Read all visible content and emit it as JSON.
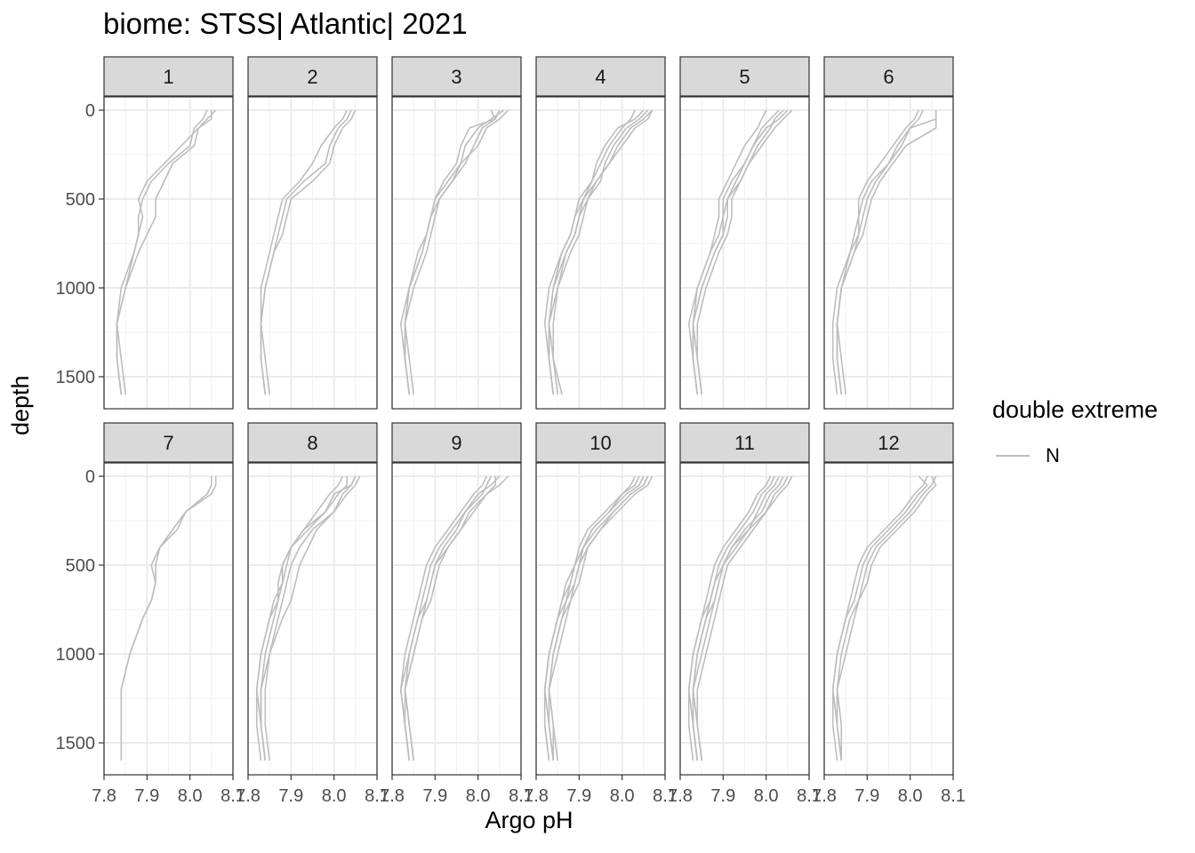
{
  "chart_data": {
    "type": "line",
    "title": "biome: STSS| Atlantic| 2021",
    "xlabel": "Argo pH",
    "ylabel": "depth",
    "xlim": [
      7.8,
      8.1
    ],
    "ylim": [
      0,
      1650
    ],
    "y_reversed": true,
    "x_ticks": [
      "7.8",
      "7.9",
      "8.0",
      "8.1"
    ],
    "y_ticks": [
      "0",
      "500",
      "1000",
      "1500"
    ],
    "grid": true,
    "legend": {
      "title": "double extreme",
      "placement": "right",
      "entries": [
        {
          "label": "N",
          "color": "#bdbdbd"
        }
      ]
    },
    "line_color": "#bdbdbd",
    "depths": [
      0,
      50,
      100,
      200,
      300,
      400,
      500,
      600,
      700,
      800,
      1000,
      1200,
      1400,
      1600
    ],
    "panels": [
      {
        "label": "1",
        "profiles": [
          [
            8.05,
            8.05,
            8.02,
            8.01,
            7.96,
            7.94,
            7.92,
            7.92,
            7.9,
            7.88,
            7.85,
            7.83,
            7.83,
            7.84
          ],
          [
            8.04,
            8.03,
            8.01,
            8.0,
            7.95,
            7.91,
            7.89,
            7.88,
            7.88,
            7.87,
            7.85,
            7.83,
            7.84,
            7.85
          ],
          [
            8.06,
            8.04,
            8.02,
            7.98,
            7.94,
            7.9,
            7.88,
            7.89,
            7.88,
            7.87,
            7.84,
            7.83,
            7.83,
            7.84
          ]
        ]
      },
      {
        "label": "2",
        "profiles": [
          [
            8.04,
            8.03,
            8.01,
            7.99,
            7.98,
            7.93,
            7.89,
            7.88,
            7.87,
            7.86,
            7.84,
            7.83,
            7.83,
            7.84
          ],
          [
            8.05,
            8.04,
            8.02,
            8.0,
            7.99,
            7.95,
            7.9,
            7.89,
            7.88,
            7.86,
            7.84,
            7.83,
            7.84,
            7.85
          ],
          [
            8.03,
            8.02,
            8.0,
            7.97,
            7.95,
            7.92,
            7.88,
            7.87,
            7.86,
            7.85,
            7.83,
            7.83,
            7.83,
            7.84
          ]
        ]
      },
      {
        "label": "3",
        "profiles": [
          [
            8.06,
            8.03,
            8.0,
            7.97,
            7.96,
            7.94,
            7.91,
            7.9,
            7.89,
            7.88,
            7.85,
            7.83,
            7.83,
            7.84
          ],
          [
            8.05,
            8.04,
            8.01,
            7.99,
            7.97,
            7.94,
            7.91,
            7.89,
            7.88,
            7.87,
            7.84,
            7.83,
            7.84,
            7.85
          ],
          [
            8.03,
            8.04,
            7.98,
            7.96,
            7.95,
            7.92,
            7.9,
            7.89,
            7.88,
            7.87,
            7.84,
            7.83,
            7.83,
            7.84
          ],
          [
            8.07,
            8.05,
            8.02,
            8.0,
            7.96,
            7.93,
            7.9,
            7.89,
            7.88,
            7.86,
            7.84,
            7.82,
            7.83,
            7.84
          ]
        ]
      },
      {
        "label": "4",
        "profiles": [
          [
            8.07,
            8.05,
            8.02,
            7.99,
            7.97,
            7.94,
            7.92,
            7.9,
            7.89,
            7.87,
            7.85,
            7.83,
            7.84,
            7.85
          ],
          [
            8.05,
            8.03,
            7.99,
            7.96,
            7.94,
            7.93,
            7.91,
            7.89,
            7.88,
            7.86,
            7.84,
            7.83,
            7.83,
            7.84
          ],
          [
            8.06,
            8.04,
            8.01,
            7.98,
            7.96,
            7.95,
            7.92,
            7.91,
            7.9,
            7.88,
            7.85,
            7.84,
            7.84,
            7.86
          ],
          [
            8.03,
            8.02,
            8.0,
            7.97,
            7.95,
            7.93,
            7.9,
            7.89,
            7.88,
            7.86,
            7.83,
            7.82,
            7.83,
            7.84
          ],
          [
            8.07,
            8.06,
            8.03,
            8.0,
            7.97,
            7.94,
            7.91,
            7.9,
            7.89,
            7.87,
            7.84,
            7.83,
            7.83,
            7.84
          ]
        ]
      },
      {
        "label": "5",
        "profiles": [
          [
            8.03,
            8.01,
            7.99,
            7.97,
            7.95,
            7.93,
            7.91,
            7.91,
            7.9,
            7.88,
            7.85,
            7.83,
            7.83,
            7.84
          ],
          [
            8.06,
            8.04,
            8.02,
            7.99,
            7.96,
            7.94,
            7.92,
            7.92,
            7.91,
            7.89,
            7.86,
            7.84,
            7.84,
            7.85
          ],
          [
            8.0,
            7.99,
            7.98,
            7.95,
            7.93,
            7.91,
            7.89,
            7.89,
            7.88,
            7.87,
            7.84,
            7.83,
            7.83,
            7.84
          ],
          [
            8.05,
            8.03,
            8.0,
            7.97,
            7.95,
            7.92,
            7.9,
            7.9,
            7.89,
            7.87,
            7.84,
            7.82,
            7.83,
            7.84
          ],
          [
            8.04,
            8.02,
            8.01,
            7.98,
            7.96,
            7.94,
            7.91,
            7.9,
            7.9,
            7.88,
            7.85,
            7.83,
            7.84,
            7.85
          ]
        ]
      },
      {
        "label": "6",
        "profiles": [
          [
            8.06,
            8.06,
            8.06,
            7.99,
            7.96,
            7.93,
            7.91,
            7.9,
            7.89,
            7.87,
            7.84,
            7.83,
            7.83,
            7.84
          ],
          [
            8.06,
            8.06,
            8.0,
            7.97,
            7.95,
            7.91,
            7.89,
            7.88,
            7.88,
            7.87,
            7.84,
            7.83,
            7.83,
            7.84
          ],
          [
            8.03,
            8.02,
            8.0,
            7.98,
            7.95,
            7.92,
            7.9,
            7.89,
            7.88,
            7.86,
            7.83,
            7.82,
            7.82,
            7.83
          ],
          [
            8.02,
            8.01,
            7.99,
            7.96,
            7.93,
            7.9,
            7.88,
            7.88,
            7.87,
            7.86,
            7.84,
            7.83,
            7.84,
            7.85
          ]
        ]
      },
      {
        "label": "7",
        "profiles": [
          [
            8.05,
            8.05,
            8.04,
            7.99,
            7.97,
            7.93,
            7.92,
            7.92,
            7.91,
            7.89,
            7.86,
            7.84,
            7.84,
            7.84
          ],
          [
            8.06,
            8.06,
            8.05,
            7.99,
            7.96,
            7.93,
            7.91,
            7.92,
            7.91,
            7.89,
            7.86,
            7.84,
            7.84,
            7.84
          ]
        ]
      },
      {
        "label": "8",
        "profiles": [
          [
            8.06,
            8.05,
            8.03,
            8.0,
            7.96,
            7.94,
            7.92,
            7.91,
            7.9,
            7.88,
            7.85,
            7.83,
            7.83,
            7.84
          ],
          [
            8.05,
            8.04,
            8.02,
            8.0,
            7.95,
            7.92,
            7.9,
            7.89,
            7.88,
            7.87,
            7.85,
            7.84,
            7.84,
            7.85
          ],
          [
            8.05,
            8.04,
            8.0,
            7.98,
            7.94,
            7.9,
            7.89,
            7.88,
            7.87,
            7.86,
            7.84,
            7.83,
            7.83,
            7.84
          ],
          [
            8.03,
            8.03,
            8.01,
            7.98,
            7.93,
            7.9,
            7.88,
            7.87,
            7.87,
            7.85,
            7.83,
            7.82,
            7.83,
            7.84
          ],
          [
            8.02,
            8.01,
            7.99,
            7.96,
            7.93,
            7.9,
            7.88,
            7.88,
            7.86,
            7.85,
            7.83,
            7.82,
            7.82,
            7.83
          ]
        ]
      },
      {
        "label": "9",
        "profiles": [
          [
            8.07,
            8.05,
            8.02,
            7.98,
            7.96,
            7.93,
            7.91,
            7.9,
            7.89,
            7.87,
            7.85,
            7.83,
            7.84,
            7.85
          ],
          [
            8.03,
            8.02,
            8.01,
            7.97,
            7.95,
            7.92,
            7.9,
            7.89,
            7.88,
            7.86,
            7.84,
            7.82,
            7.83,
            7.84
          ],
          [
            8.05,
            8.03,
            8.0,
            7.97,
            7.94,
            7.91,
            7.89,
            7.88,
            7.87,
            7.86,
            7.84,
            7.83,
            7.83,
            7.84
          ],
          [
            8.04,
            8.04,
            8.02,
            7.99,
            7.96,
            7.93,
            7.9,
            7.89,
            7.88,
            7.87,
            7.85,
            7.83,
            7.84,
            7.85
          ],
          [
            8.02,
            8.01,
            7.99,
            7.96,
            7.93,
            7.9,
            7.88,
            7.87,
            7.86,
            7.85,
            7.83,
            7.82,
            7.83,
            7.84
          ]
        ]
      },
      {
        "label": "10",
        "profiles": [
          [
            8.06,
            8.05,
            8.02,
            7.98,
            7.94,
            7.91,
            7.89,
            7.88,
            7.86,
            7.85,
            7.83,
            7.82,
            7.82,
            7.83
          ],
          [
            8.05,
            8.04,
            8.01,
            7.97,
            7.93,
            7.91,
            7.9,
            7.89,
            7.88,
            7.86,
            7.84,
            7.83,
            7.83,
            7.84
          ],
          [
            8.07,
            8.06,
            8.03,
            7.99,
            7.95,
            7.92,
            7.9,
            7.89,
            7.87,
            7.85,
            7.83,
            7.82,
            7.83,
            7.84
          ],
          [
            8.03,
            8.02,
            8.0,
            7.96,
            7.92,
            7.9,
            7.89,
            7.88,
            7.87,
            7.86,
            7.84,
            7.83,
            7.84,
            7.85
          ],
          [
            8.04,
            8.03,
            8.0,
            7.97,
            7.93,
            7.91,
            7.89,
            7.87,
            7.86,
            7.85,
            7.83,
            7.82,
            7.82,
            7.83
          ],
          [
            8.06,
            8.05,
            8.02,
            7.98,
            7.95,
            7.92,
            7.91,
            7.9,
            7.88,
            7.87,
            7.85,
            7.83,
            7.84,
            7.84
          ]
        ]
      },
      {
        "label": "11",
        "profiles": [
          [
            8.05,
            8.04,
            8.02,
            8.0,
            7.97,
            7.94,
            7.91,
            7.9,
            7.89,
            7.88,
            7.86,
            7.84,
            7.84,
            7.85
          ],
          [
            8.03,
            8.02,
            8.0,
            7.98,
            7.96,
            7.93,
            7.9,
            7.89,
            7.88,
            7.86,
            7.84,
            7.83,
            7.83,
            7.84
          ],
          [
            8.02,
            8.01,
            7.99,
            7.97,
            7.94,
            7.91,
            7.89,
            7.88,
            7.87,
            7.85,
            7.83,
            7.82,
            7.83,
            7.84
          ],
          [
            8.06,
            8.05,
            8.03,
            8.0,
            7.96,
            7.92,
            7.9,
            7.88,
            7.87,
            7.86,
            7.84,
            7.83,
            7.83,
            7.84
          ],
          [
            8.04,
            8.03,
            8.01,
            7.99,
            7.95,
            7.92,
            7.9,
            7.89,
            7.88,
            7.87,
            7.85,
            7.83,
            7.84,
            7.85
          ],
          [
            8.01,
            8.0,
            7.98,
            7.96,
            7.93,
            7.9,
            7.88,
            7.87,
            7.86,
            7.85,
            7.83,
            7.82,
            7.82,
            7.83
          ]
        ]
      },
      {
        "label": "12",
        "profiles": [
          [
            8.06,
            8.05,
            8.03,
            8.0,
            7.96,
            7.92,
            7.9,
            7.89,
            7.88,
            7.86,
            7.84,
            7.83,
            7.83,
            7.84
          ],
          [
            8.02,
            8.04,
            8.02,
            7.99,
            7.95,
            7.91,
            7.89,
            7.88,
            7.87,
            7.85,
            7.83,
            7.82,
            7.82,
            7.83
          ],
          [
            8.05,
            8.06,
            8.04,
            8.01,
            7.97,
            7.93,
            7.91,
            7.9,
            7.88,
            7.87,
            7.85,
            7.83,
            7.84,
            7.84
          ],
          [
            8.04,
            8.03,
            8.01,
            7.98,
            7.94,
            7.9,
            7.88,
            7.87,
            7.86,
            7.85,
            7.83,
            7.82,
            7.83,
            7.84
          ]
        ]
      }
    ]
  }
}
